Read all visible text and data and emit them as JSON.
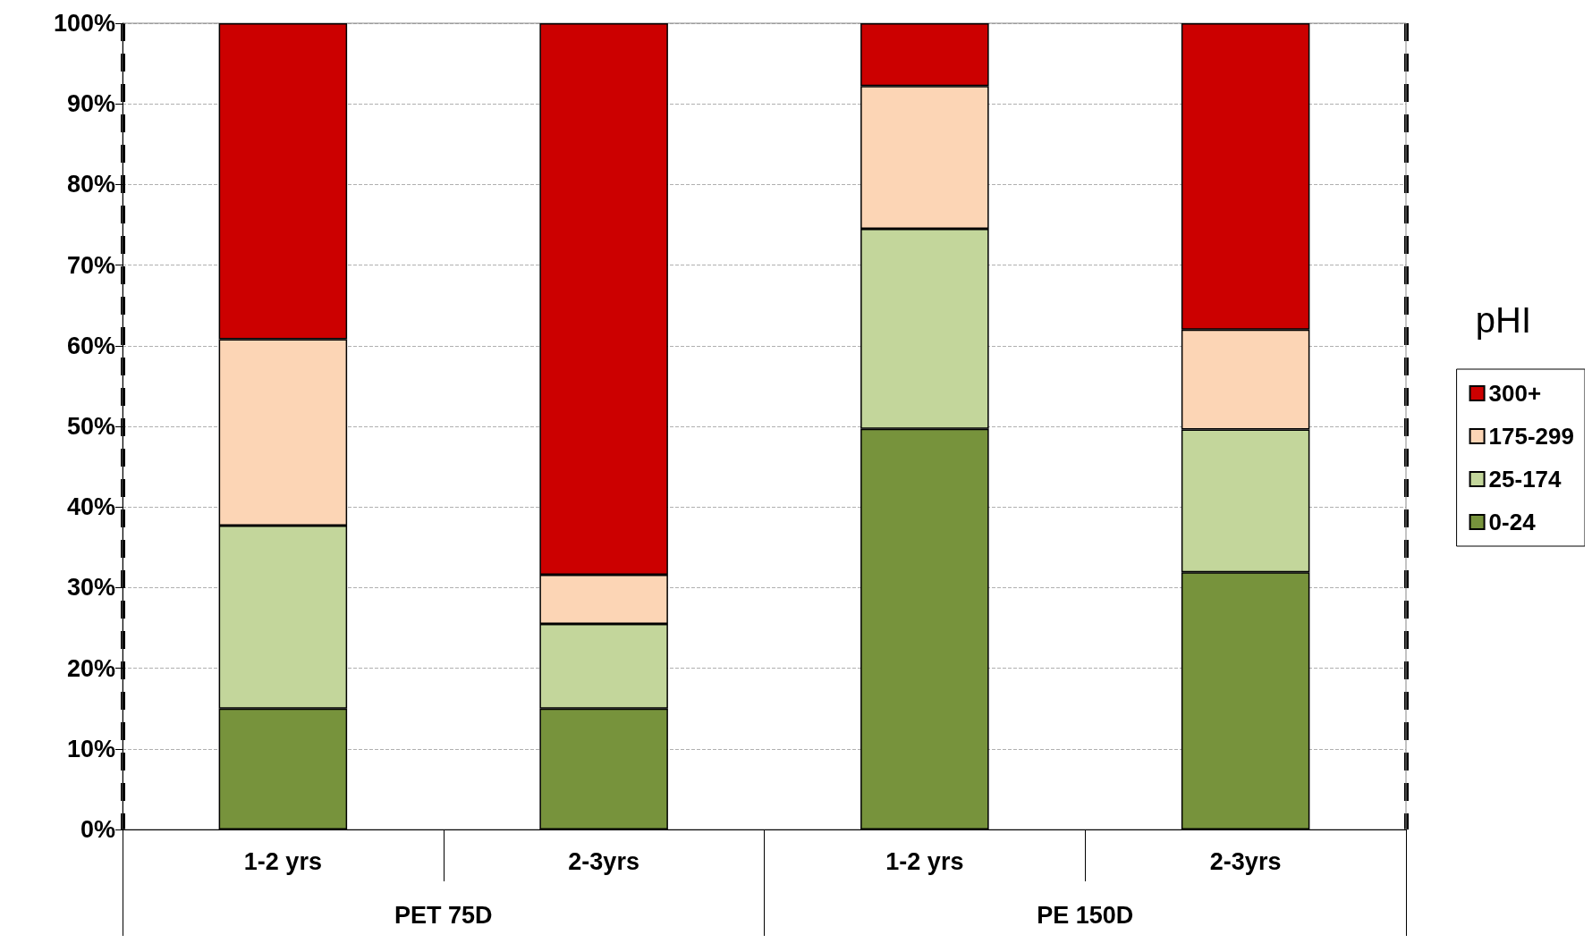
{
  "chart_data": {
    "type": "bar",
    "stacked": true,
    "categories": [
      "1-2 yrs",
      "2-3yrs",
      "1-2 yrs",
      "2-3yrs"
    ],
    "series": [
      {
        "name": "0-24",
        "color": "#77933c",
        "values": [
          15,
          15,
          49.7,
          31.9
        ]
      },
      {
        "name": "25-174",
        "color": "#c3d69b",
        "values": [
          22.7,
          10.5,
          24.8,
          17.7
        ]
      },
      {
        "name": "175-299",
        "color": "#fcd5b5",
        "values": [
          23.1,
          6.1,
          17.7,
          12.4
        ]
      },
      {
        "name": "300+",
        "color": "#cc0000",
        "values": [
          39.2,
          68.4,
          7.8,
          38.0
        ]
      }
    ],
    "annotations": [
      "PET 75D",
      "PE 150D"
    ],
    "legend_title": "pHI",
    "legend": "right",
    "grid": "y",
    "ylim": [
      0,
      100
    ],
    "yticks": [
      {
        "value": 0,
        "label": "0%"
      },
      {
        "value": 10,
        "label": "10%"
      },
      {
        "value": 20,
        "label": "20%"
      },
      {
        "value": 30,
        "label": "30%"
      },
      {
        "value": 40,
        "label": "40%"
      },
      {
        "value": 50,
        "label": "50%"
      },
      {
        "value": 60,
        "label": "60%"
      },
      {
        "value": 70,
        "label": "70%"
      },
      {
        "value": 80,
        "label": "80%"
      },
      {
        "value": 90,
        "label": "90%"
      },
      {
        "value": 100,
        "label": "100%"
      }
    ]
  }
}
